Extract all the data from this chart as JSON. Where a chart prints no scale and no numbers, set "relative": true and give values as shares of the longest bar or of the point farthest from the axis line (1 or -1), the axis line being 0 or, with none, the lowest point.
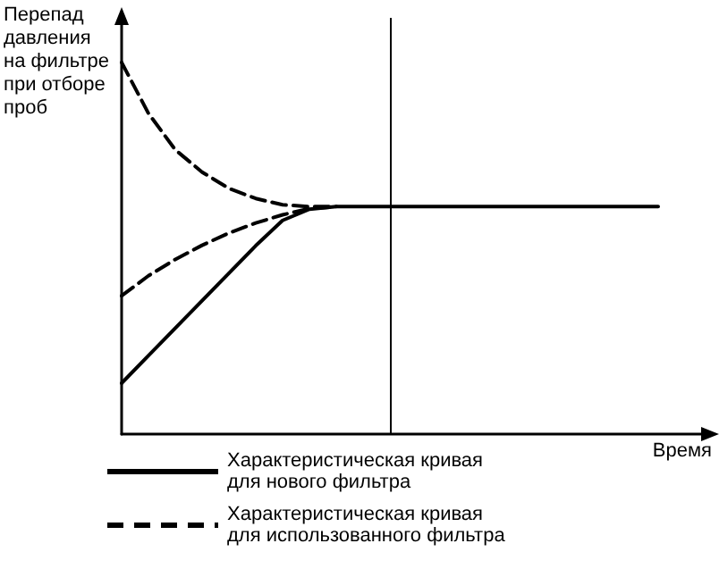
{
  "chart_data": {
    "type": "line",
    "relative": true,
    "ylabel": "Перепад давления на фильтре при отборе проб",
    "xlabel": "Время",
    "categories": [
      null,
      null,
      null,
      null,
      null,
      null,
      null,
      null,
      null,
      null,
      null,
      null,
      null,
      null,
      null,
      null,
      null,
      null,
      null,
      null,
      null,
      null,
      null
    ],
    "series": [
      {
        "name": "Характеристическая кривая для нового фильтра",
        "color": "#000000",
        "line_style": "solid",
        "values": [
          0.137,
          0.211,
          0.285,
          0.359,
          0.433,
          0.507,
          0.575,
          0.605,
          0.612,
          0.612,
          0.612,
          0.612,
          0.612,
          0.612,
          0.612,
          0.612,
          0.612,
          0.612,
          0.612,
          0.612,
          0.612,
          null,
          null
        ]
      },
      {
        "name": "Характеристическая кривая для использованного фильтра",
        "color": "#000000",
        "line_style": "dashed",
        "values": [
          1,
          0.863,
          0.765,
          0.705,
          0.661,
          0.634,
          0.617,
          0.612,
          0.612,
          null,
          null,
          null,
          null,
          null,
          null,
          null,
          null,
          null,
          null,
          null,
          null,
          null,
          null
        ]
      },
      {
        "color": "#000000",
        "line_style": "dashed",
        "values": [
          0.372,
          0.426,
          0.47,
          0.508,
          0.541,
          0.568,
          0.59,
          0.607,
          0.612,
          null,
          null,
          null,
          null,
          null,
          null,
          null,
          null,
          null,
          null,
          null,
          null,
          null,
          null
        ]
      }
    ],
    "grid": false,
    "legend": "bottom",
    "marker": "none"
  }
}
